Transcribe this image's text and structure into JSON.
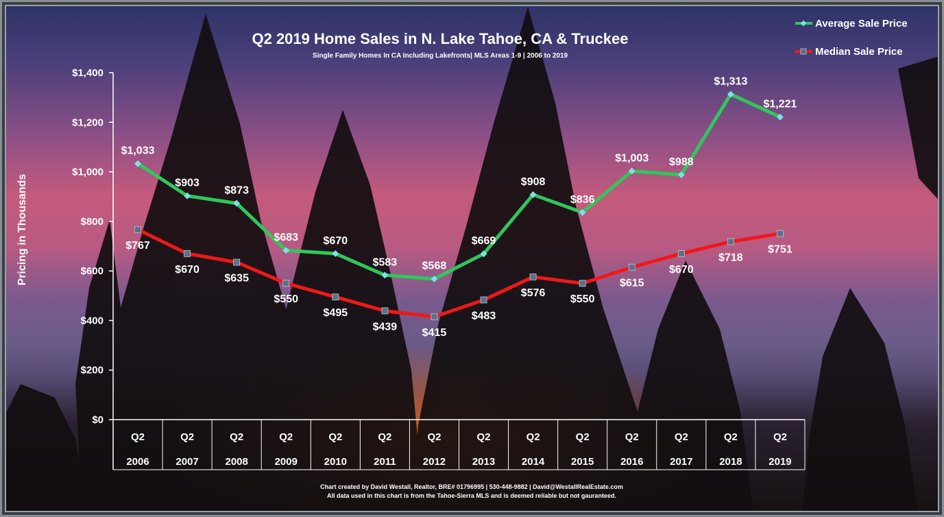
{
  "chart_data": {
    "type": "line",
    "title": "Q2 2019 Home Sales in N. Lake Tahoe, CA & Truckee",
    "subtitle": "Single Family Homes In CA Including Lakefronts| MLS Areas 1-9 | 2006 to 2019",
    "ylabel": "Pricing in Thousands",
    "xlabel": "",
    "ylim": [
      0,
      1400
    ],
    "yticks": [
      0,
      200,
      400,
      600,
      800,
      1000,
      1200,
      1400
    ],
    "ytick_labels": [
      "$0",
      "$200",
      "$400",
      "$600",
      "$800",
      "$1,000",
      "$1,200",
      "$1,400"
    ],
    "categories": [
      {
        "quarter": "Q2",
        "year": "2006"
      },
      {
        "quarter": "Q2",
        "year": "2007"
      },
      {
        "quarter": "Q2",
        "year": "2008"
      },
      {
        "quarter": "Q2",
        "year": "2009"
      },
      {
        "quarter": "Q2",
        "year": "2010"
      },
      {
        "quarter": "Q2",
        "year": "2011"
      },
      {
        "quarter": "Q2",
        "year": "2012"
      },
      {
        "quarter": "Q2",
        "year": "2013"
      },
      {
        "quarter": "Q2",
        "year": "2014"
      },
      {
        "quarter": "Q2",
        "year": "2015"
      },
      {
        "quarter": "Q2",
        "year": "2016"
      },
      {
        "quarter": "Q2",
        "year": "2017"
      },
      {
        "quarter": "Q2",
        "year": "2018"
      },
      {
        "quarter": "Q2",
        "year": "2019"
      }
    ],
    "series": [
      {
        "name": "Average Sale Price",
        "color": "#2ec85a",
        "marker_color": "#7fe0e8",
        "values": [
          1033,
          903,
          873,
          683,
          670,
          583,
          568,
          669,
          908,
          836,
          1003,
          988,
          1313,
          1221
        ],
        "labels": [
          "$1,033",
          "$903",
          "$873",
          "$683",
          "$670",
          "$583",
          "$568",
          "$669",
          "$908",
          "$836",
          "$1,003",
          "$988",
          "$1,313",
          "$1,221"
        ]
      },
      {
        "name": "Median Sale Price",
        "color": "#f01818",
        "marker_color": "#5a6f8a",
        "values": [
          767,
          670,
          635,
          550,
          495,
          439,
          415,
          483,
          576,
          550,
          615,
          670,
          718,
          751
        ],
        "labels": [
          "$767",
          "$670",
          "$635",
          "$550",
          "$495",
          "$439",
          "$415",
          "$483",
          "$576",
          "$550",
          "$615",
          "$670",
          "$718",
          "$751"
        ]
      }
    ],
    "legend_position": "top-right",
    "grid": false
  },
  "footer": {
    "line1": "Chart created by David Westall, Realtor, BRE# 01796995 | 530-448-9882 | David@WestallRealEstate.com",
    "line2": "All data used in this chart is from the Tahoe-Sierra MLS and is deemed reliable but  not gauranteed."
  }
}
